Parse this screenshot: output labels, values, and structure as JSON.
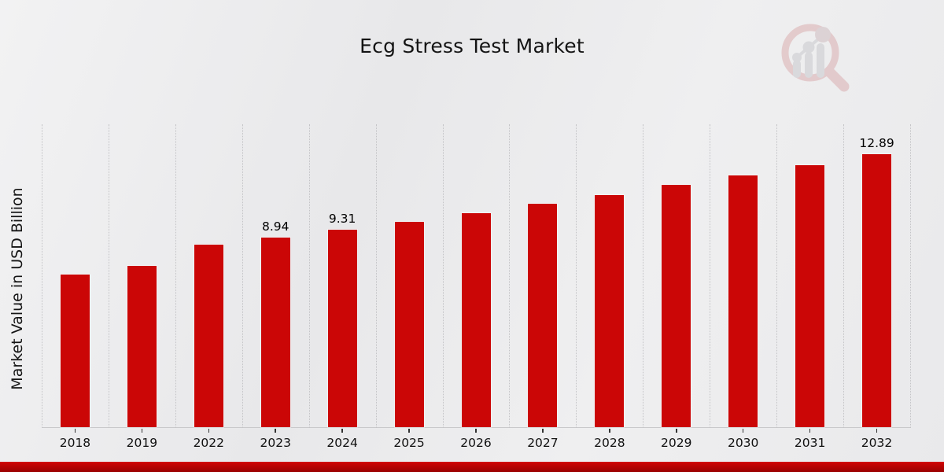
{
  "page": {
    "title": "Ecg Stress Test Market"
  },
  "chart_data": {
    "type": "bar",
    "title": "Ecg Stress Test Market",
    "xlabel": "",
    "ylabel": "Market Value in USD Billion",
    "categories": [
      "2018",
      "2019",
      "2022",
      "2023",
      "2024",
      "2025",
      "2026",
      "2027",
      "2028",
      "2029",
      "2030",
      "2031",
      "2032"
    ],
    "values": [
      7.2,
      7.6,
      8.6,
      8.94,
      9.31,
      9.7,
      10.1,
      10.52,
      10.95,
      11.41,
      11.88,
      12.37,
      12.89
    ],
    "data_labels": {
      "2023": "8.94",
      "2024": "9.31",
      "2032": "12.89"
    },
    "ylim": [
      0,
      14.32
    ],
    "grid": "vertical-dotted",
    "legend": "none",
    "bar_color": "#cb0606"
  },
  "colors": {
    "bar": "#cb0606",
    "gridline": "#c3c3c6",
    "axis_line": "#c9c9cb",
    "tick": "#333333",
    "text": "#111111",
    "footer_top": "#d20404",
    "footer_bottom": "#9a0101",
    "watermark_ring": "#d9a9ab",
    "watermark_gray": "#c6c6ca"
  },
  "icons": {
    "watermark": "magnifier-bar-chart-logo"
  }
}
